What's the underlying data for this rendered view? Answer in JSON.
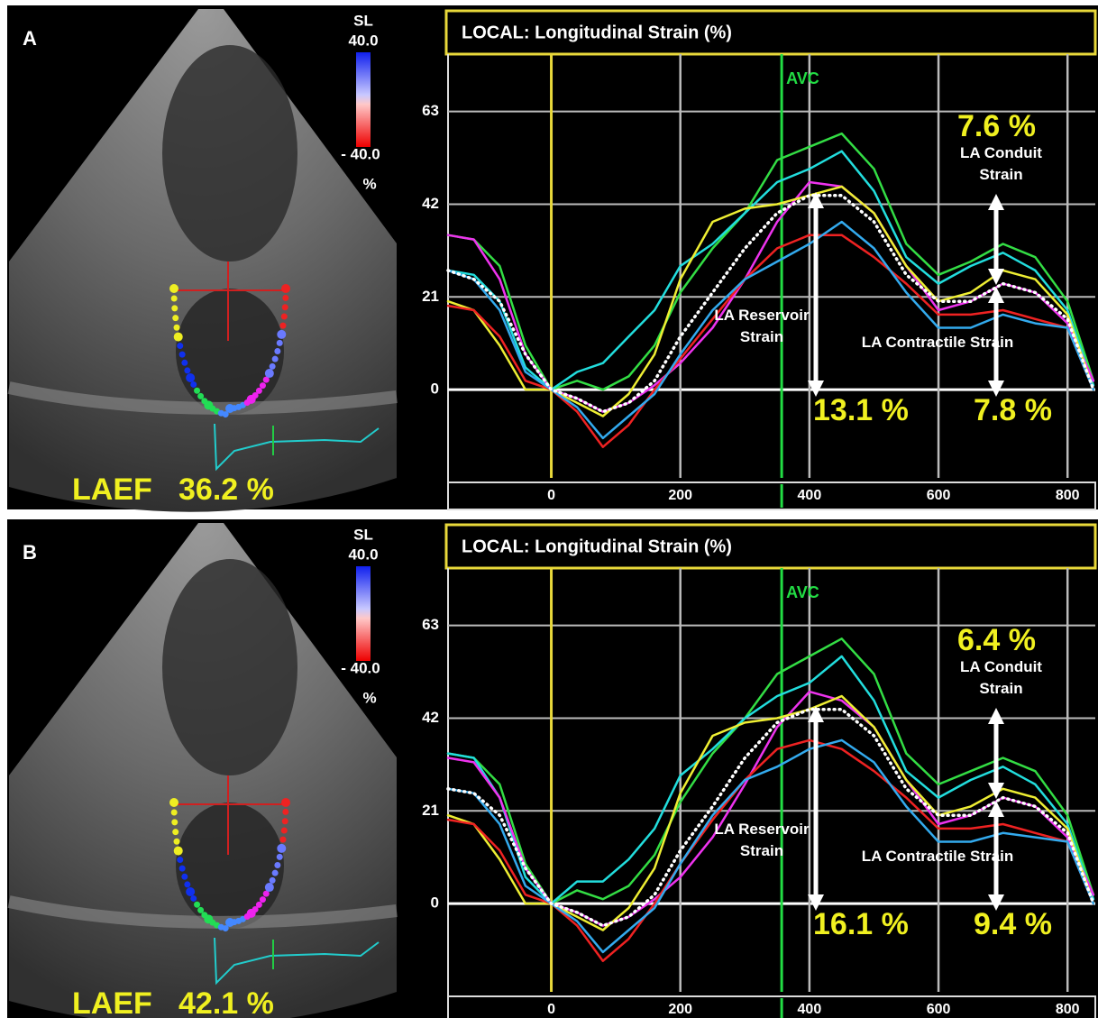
{
  "chart_data": [
    {
      "type": "line",
      "panel_label": "A",
      "title": "LOCAL: Longitudinal Strain (%)",
      "laef": {
        "label": "LAEF",
        "value_label": "36.2 %"
      },
      "colorbar": {
        "title": "SL",
        "max": "40.0",
        "min": "- 40.0",
        "unit": "%"
      },
      "events": [
        {
          "label": "AVC",
          "x": 357,
          "color": "#22dd44"
        }
      ],
      "annotations": [
        {
          "text": "LA Reservoir Strain",
          "value_label": "13.1 %"
        },
        {
          "text": "LA Conduit Strain",
          "value_label": "7.6 %"
        },
        {
          "text": "LA Contractile Strain",
          "value_label": "7.8 %"
        }
      ],
      "x": [
        -160,
        -120,
        -80,
        -40,
        0,
        40,
        80,
        120,
        160,
        200,
        250,
        300,
        350,
        400,
        450,
        500,
        550,
        600,
        650,
        700,
        750,
        800,
        840
      ],
      "series": [
        {
          "color": "#33dd44",
          "values": [
            35,
            34,
            28,
            10,
            0,
            2,
            0,
            3,
            10,
            22,
            32,
            40,
            52,
            55,
            58,
            50,
            33,
            26,
            29,
            33,
            30,
            20,
            2
          ]
        },
        {
          "color": "#22dddd",
          "values": [
            27,
            26,
            20,
            5,
            0,
            4,
            6,
            12,
            18,
            28,
            33,
            40,
            47,
            50,
            54,
            45,
            30,
            24,
            28,
            31,
            27,
            18,
            1
          ]
        },
        {
          "color": "#ee33ee",
          "values": [
            35,
            34,
            25,
            8,
            0,
            -2,
            -5,
            -3,
            1,
            6,
            14,
            25,
            38,
            47,
            46,
            40,
            28,
            18,
            20,
            24,
            22,
            15,
            2
          ]
        },
        {
          "color": "#eeee33",
          "values": [
            20,
            18,
            10,
            0,
            0,
            -3,
            -6,
            -1,
            8,
            25,
            38,
            41,
            42,
            44,
            46,
            40,
            28,
            20,
            22,
            27,
            25,
            17,
            0
          ]
        },
        {
          "color": "#ee2222",
          "values": [
            19,
            18,
            12,
            2,
            0,
            -5,
            -13,
            -8,
            0,
            7,
            16,
            25,
            32,
            35,
            35,
            30,
            24,
            17,
            17,
            18,
            16,
            14,
            0
          ]
        },
        {
          "color": "#33aaee",
          "values": [
            27,
            25,
            18,
            4,
            0,
            -4,
            -11,
            -6,
            -1,
            8,
            18,
            25,
            29,
            33,
            38,
            32,
            22,
            14,
            14,
            17,
            15,
            14,
            0
          ]
        },
        {
          "color": "#ffffff",
          "dotted": true,
          "values": [
            27,
            25,
            20,
            8,
            0,
            -2,
            -5,
            -3,
            2,
            12,
            22,
            32,
            40,
            44,
            44,
            38,
            26,
            20,
            20,
            24,
            22,
            16,
            0
          ]
        }
      ],
      "xlim": [
        -160,
        843
      ],
      "ylim": [
        -20,
        76
      ],
      "xticks": [
        0,
        200,
        400,
        600,
        800
      ],
      "yticks": [
        0,
        21,
        42,
        63
      ],
      "grid": true,
      "x_zero_color": "#e8d83a"
    },
    {
      "type": "line",
      "panel_label": "B",
      "title": "LOCAL: Longitudinal Strain (%)",
      "laef": {
        "label": "LAEF",
        "value_label": "42.1 %"
      },
      "colorbar": {
        "title": "SL",
        "max": "40.0",
        "min": "- 40.0",
        "unit": "%"
      },
      "events": [
        {
          "label": "AVC",
          "x": 357,
          "color": "#22dd44"
        }
      ],
      "annotations": [
        {
          "text": "LA Reservoir Strain",
          "value_label": "16.1 %"
        },
        {
          "text": "LA Conduit Strain",
          "value_label": "6.4 %"
        },
        {
          "text": "LA Contractile Strain",
          "value_label": "9.4 %"
        }
      ],
      "x": [
        -160,
        -120,
        -80,
        -40,
        0,
        40,
        80,
        120,
        160,
        200,
        250,
        300,
        350,
        400,
        450,
        500,
        550,
        600,
        650,
        700,
        750,
        800,
        840
      ],
      "series": [
        {
          "color": "#33dd44",
          "values": [
            34,
            33,
            27,
            9,
            0,
            3,
            1,
            4,
            11,
            23,
            34,
            42,
            52,
            56,
            60,
            52,
            34,
            27,
            30,
            33,
            30,
            20,
            2
          ]
        },
        {
          "color": "#22dddd",
          "values": [
            34,
            33,
            24,
            6,
            0,
            5,
            5,
            10,
            17,
            29,
            35,
            42,
            47,
            50,
            56,
            46,
            30,
            24,
            28,
            31,
            27,
            18,
            1
          ]
        },
        {
          "color": "#ee33ee",
          "values": [
            33,
            32,
            24,
            8,
            0,
            -2,
            -5,
            -3,
            1,
            6,
            15,
            27,
            40,
            48,
            46,
            40,
            28,
            18,
            20,
            24,
            22,
            15,
            2
          ]
        },
        {
          "color": "#eeee33",
          "values": [
            20,
            18,
            10,
            0,
            0,
            -3,
            -6,
            -1,
            8,
            25,
            38,
            41,
            42,
            44,
            47,
            40,
            28,
            20,
            22,
            26,
            24,
            17,
            0
          ]
        },
        {
          "color": "#ee2222",
          "values": [
            19,
            18,
            12,
            2,
            0,
            -5,
            -13,
            -8,
            0,
            9,
            19,
            28,
            35,
            37,
            35,
            30,
            24,
            17,
            17,
            18,
            16,
            14,
            0
          ]
        },
        {
          "color": "#33aaee",
          "values": [
            26,
            25,
            18,
            4,
            0,
            -4,
            -11,
            -6,
            -1,
            9,
            20,
            28,
            31,
            35,
            37,
            32,
            22,
            14,
            14,
            16,
            15,
            14,
            0
          ]
        },
        {
          "color": "#ffffff",
          "dotted": true,
          "values": [
            26,
            25,
            20,
            8,
            0,
            -2,
            -5,
            -3,
            2,
            12,
            22,
            33,
            41,
            44,
            44,
            38,
            26,
            20,
            20,
            24,
            22,
            16,
            0
          ]
        }
      ],
      "xlim": [
        -160,
        843
      ],
      "ylim": [
        -20,
        76
      ],
      "xticks": [
        0,
        200,
        400,
        600,
        800
      ],
      "yticks": [
        0,
        21,
        42,
        63
      ],
      "grid": true,
      "x_zero_color": "#e8d83a"
    }
  ]
}
